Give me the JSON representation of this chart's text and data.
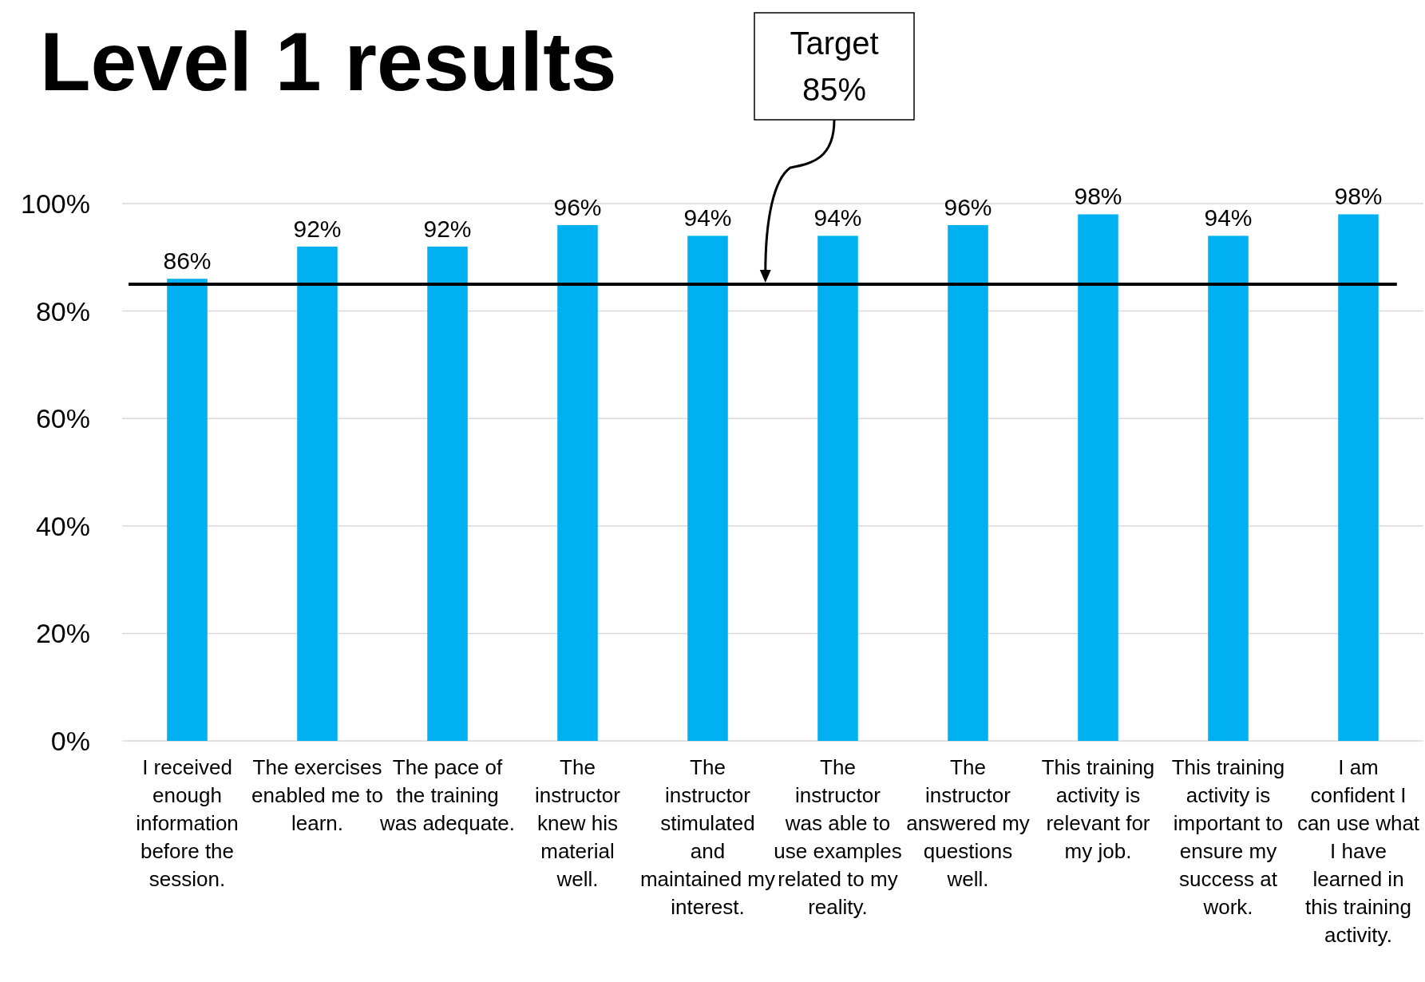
{
  "chart_data": {
    "type": "bar",
    "title": "Level 1 results",
    "categories": [
      "I received enough information before the session.",
      "The exercises enabled me to learn.",
      "The pace of the training was adequate.",
      "The instructor knew his material well.",
      "The instructor stimulated and maintained my interest.",
      "The instructor was able to use examples related to my reality.",
      "The instructor answered my questions well.",
      "This training activity is relevant for my job.",
      "This training activity is important to ensure my success at work.",
      "I am confident I can use what I have learned in this training activity."
    ],
    "values": [
      86,
      92,
      92,
      96,
      94,
      94,
      96,
      98,
      94,
      98
    ],
    "value_labels": [
      "86%",
      "92%",
      "92%",
      "96%",
      "94%",
      "94%",
      "96%",
      "98%",
      "94%",
      "98%"
    ],
    "color": "#00b0f0",
    "ylim": [
      0,
      100
    ],
    "yticks": [
      {
        "value": 0,
        "label": "0%"
      },
      {
        "value": 20,
        "label": "20%"
      },
      {
        "value": 40,
        "label": "40%"
      },
      {
        "value": 60,
        "label": "60%"
      },
      {
        "value": 80,
        "label": "80%"
      },
      {
        "value": 100,
        "label": "100%"
      }
    ],
    "grid": "y",
    "ref_lines": [
      {
        "axis": "y",
        "value": 85,
        "label": "Target 85%",
        "color": "#000000"
      }
    ]
  }
}
